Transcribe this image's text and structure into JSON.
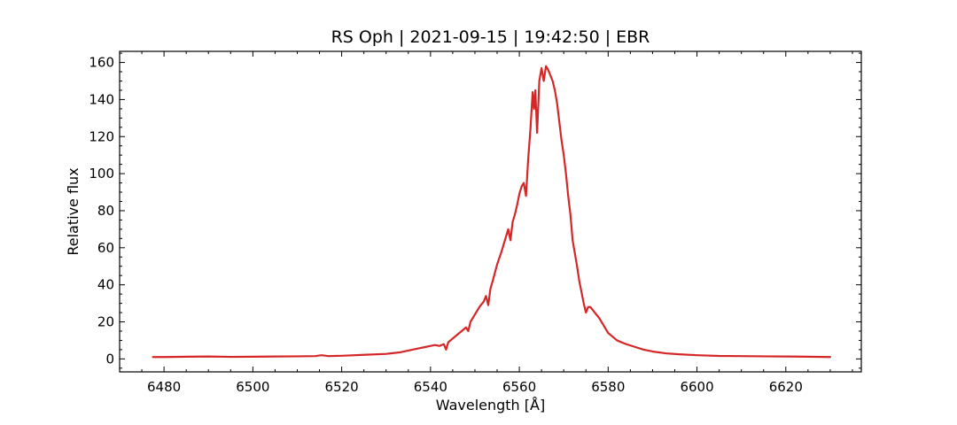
{
  "chart_data": {
    "type": "line",
    "title": "RS Oph | 2021-09-15 | 19:42:50 | EBR",
    "xlabel": "Wavelength [Å]",
    "ylabel": "Relative flux",
    "xlim": [
      6470,
      6637
    ],
    "ylim": [
      -7,
      166
    ],
    "x_ticks": [
      6480,
      6500,
      6520,
      6540,
      6560,
      6580,
      6600,
      6620
    ],
    "x_minor_step": 5,
    "y_ticks": [
      0,
      20,
      40,
      60,
      80,
      100,
      120,
      140,
      160
    ],
    "y_minor_step": 5,
    "tick_direction": "in",
    "grid": false,
    "legend": "none",
    "series": [
      {
        "color": "#d62728",
        "x": [
          6477.5,
          6480,
          6485,
          6490,
          6495,
          6500,
          6505,
          6510,
          6514,
          6515.5,
          6517,
          6520,
          6525,
          6530,
          6533,
          6535,
          6537,
          6539,
          6540,
          6541,
          6542,
          6543,
          6543.5,
          6544,
          6545,
          6546,
          6547,
          6547.5,
          6548,
          6548.5,
          6549,
          6550,
          6551,
          6552,
          6552.5,
          6553,
          6553.5,
          6554,
          6555,
          6556,
          6557,
          6557.5,
          6558,
          6558.5,
          6559,
          6559.5,
          6560,
          6560.5,
          6561,
          6561.5,
          6562,
          6562.5,
          6563,
          6563.3,
          6563.6,
          6564,
          6564.5,
          6565,
          6565.5,
          6566,
          6566.5,
          6567,
          6567.5,
          6568,
          6568.5,
          6569,
          6569.5,
          6570,
          6570.5,
          6571,
          6571.5,
          6572,
          6572.5,
          6573,
          6573.5,
          6574,
          6574.5,
          6575,
          6575.5,
          6576,
          6577,
          6578,
          6579,
          6580,
          6582,
          6584,
          6586,
          6588,
          6590,
          6593,
          6596,
          6600,
          6605,
          6610,
          6615,
          6620,
          6625,
          6630
        ],
        "y": [
          1,
          1,
          1.2,
          1.3,
          1.1,
          1.2,
          1.3,
          1.4,
          1.5,
          2,
          1.5,
          1.7,
          2.2,
          2.7,
          3.5,
          4.5,
          5.5,
          6.5,
          7,
          7.5,
          7,
          8,
          5,
          9,
          11,
          13,
          15,
          16,
          17,
          15,
          20,
          24,
          28,
          31,
          34,
          29,
          38,
          42,
          51,
          58,
          66,
          70,
          64,
          74,
          78,
          83,
          89,
          93,
          95,
          88,
          108,
          124,
          144,
          135,
          145,
          122,
          150,
          157,
          150,
          158,
          156,
          153,
          150,
          145,
          138,
          128,
          118,
          110,
          100,
          88,
          78,
          64,
          57,
          50,
          42,
          36,
          30,
          25,
          28,
          28,
          25,
          22,
          18,
          14,
          10,
          8,
          6.5,
          5,
          4,
          3,
          2.5,
          2,
          1.6,
          1.5,
          1.4,
          1.3,
          1.2,
          1
        ]
      }
    ]
  }
}
